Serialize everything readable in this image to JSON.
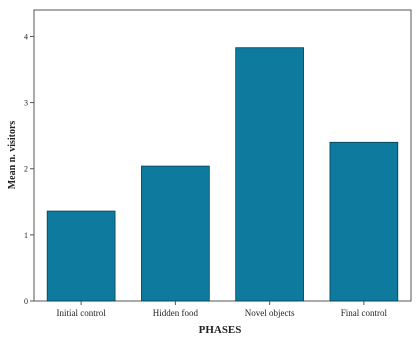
{
  "chart_data": {
    "type": "bar",
    "title": "",
    "xlabel": "PHASES",
    "ylabel": "Mean n. visitors",
    "categories": [
      "Initial control",
      "Hidden food",
      "Novel objects",
      "Final control"
    ],
    "values": [
      1.36,
      2.04,
      3.83,
      2.4
    ],
    "ylim": [
      0,
      4.4
    ],
    "yticks": [
      0,
      1,
      2,
      3,
      4
    ],
    "grid": false,
    "legend": "none",
    "colors": {
      "bar": "#0E7A9E",
      "bar_edge": "#0a3d52",
      "axis": "#555555"
    }
  }
}
